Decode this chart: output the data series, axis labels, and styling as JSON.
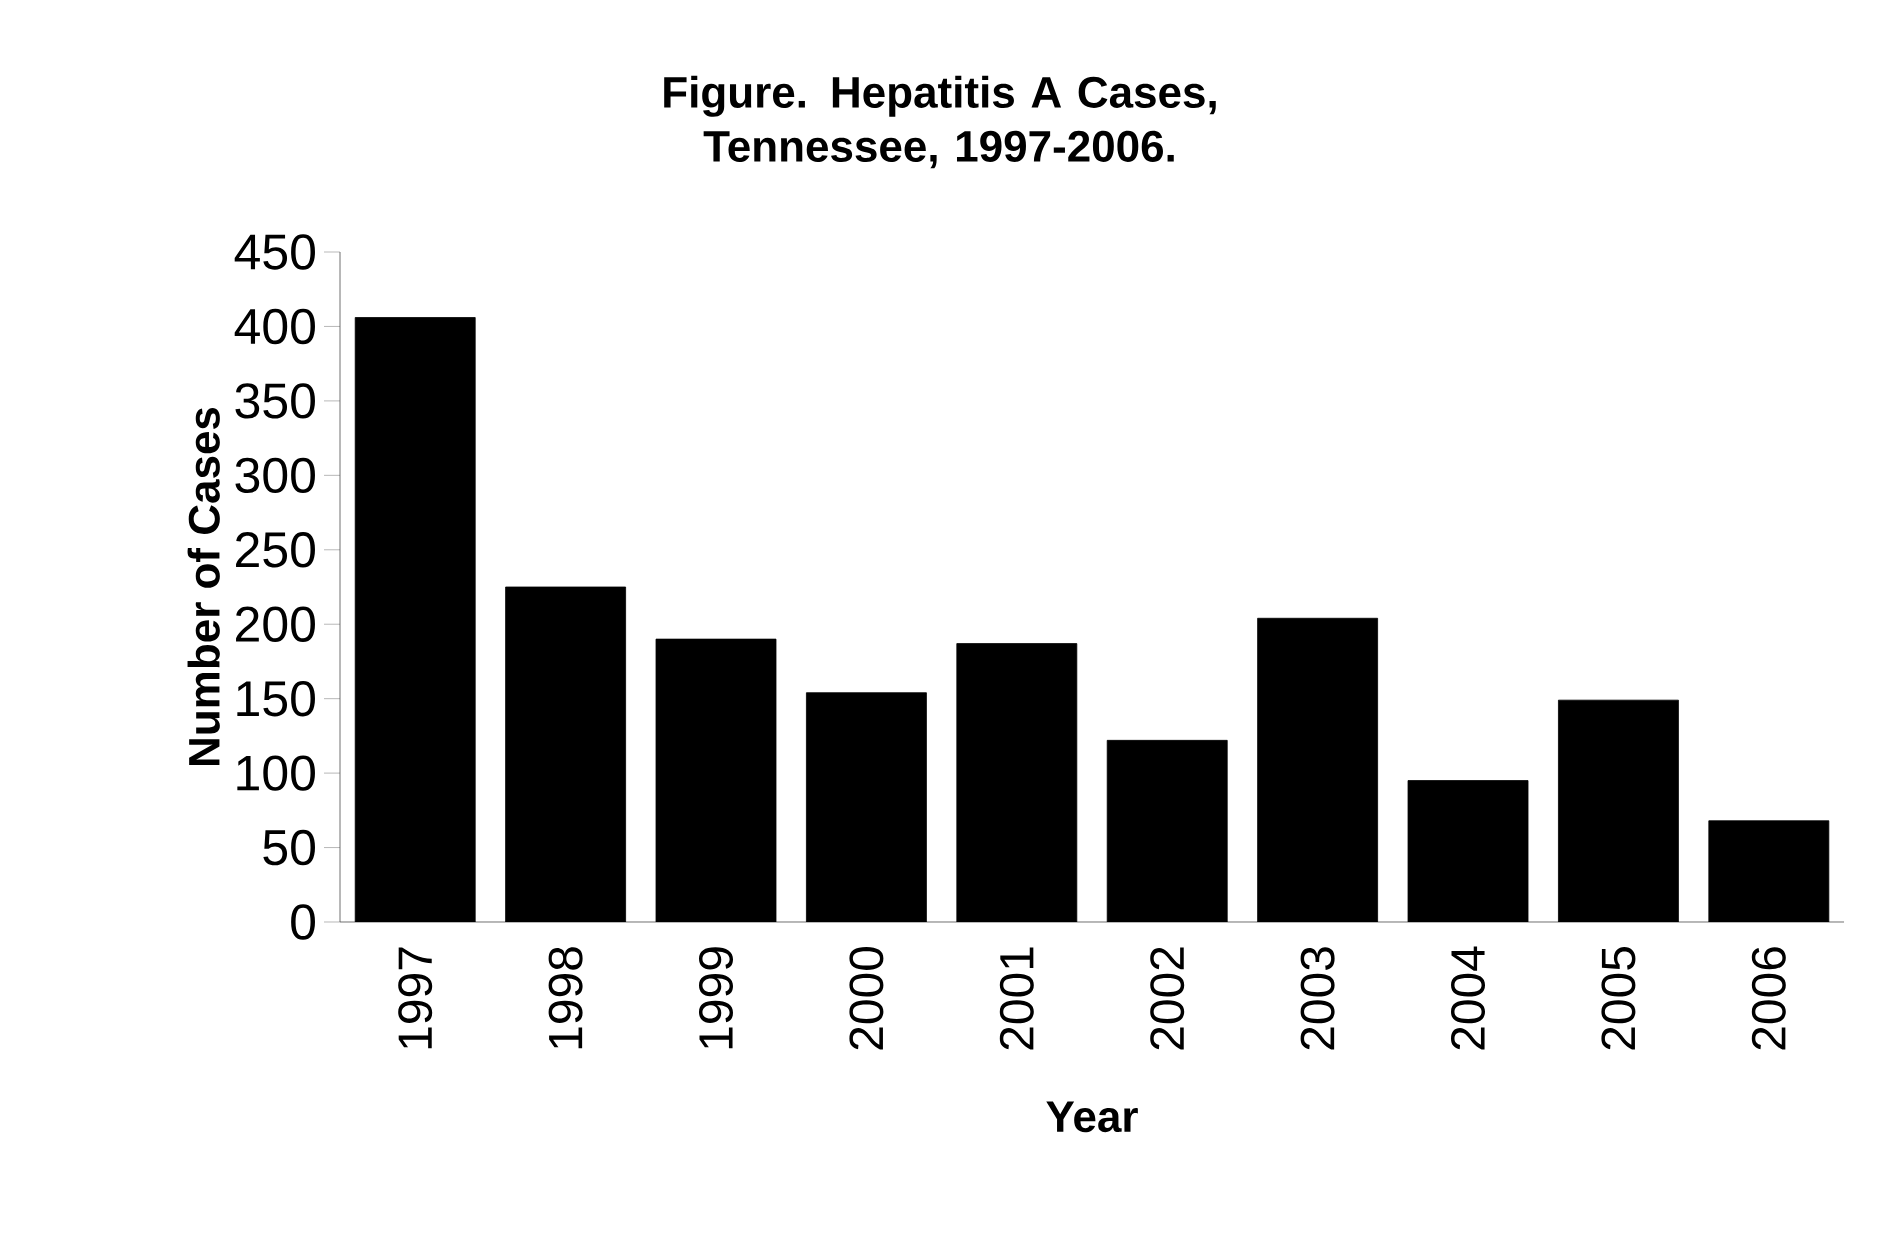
{
  "chart_data": {
    "type": "bar",
    "title": "Figure. Hepatitis A Cases, Tennessee, 1997-2006.",
    "xlabel": "Year",
    "ylabel": "Number of Cases",
    "categories": [
      "1997",
      "1998",
      "1999",
      "2000",
      "2001",
      "2002",
      "2003",
      "2004",
      "2005",
      "2006"
    ],
    "values": [
      406,
      225,
      190,
      154,
      187,
      122,
      204,
      95,
      149,
      68
    ],
    "color": "#000000",
    "ylim": [
      0,
      450
    ],
    "yticks": [
      0,
      50,
      100,
      150,
      200,
      250,
      300,
      350,
      400,
      450
    ]
  }
}
